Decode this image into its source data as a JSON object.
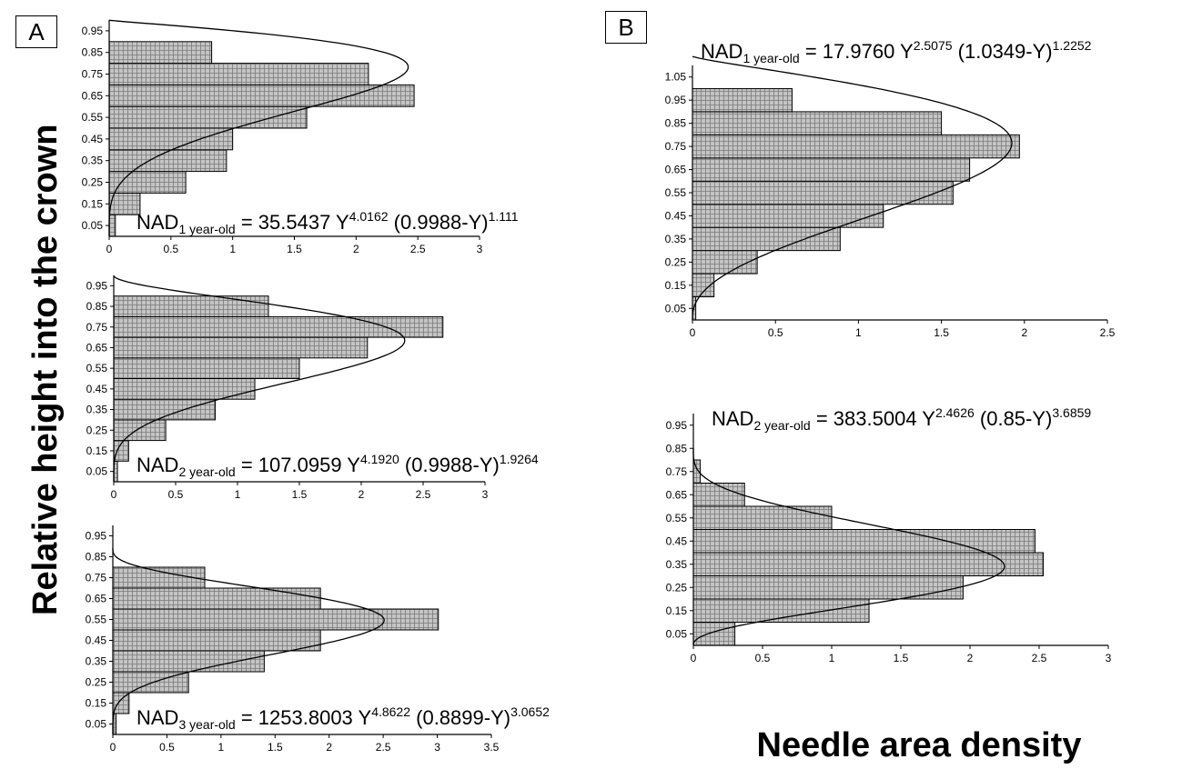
{
  "panels": [
    {
      "id": "A",
      "label": "A"
    },
    {
      "id": "B",
      "label": "B"
    }
  ],
  "axes": {
    "ylabel": "Relative height into the crown",
    "xlabel": "Needle area density"
  },
  "equations": {
    "a1": {
      "lhs": "NAD",
      "sub": "1 year-old",
      "coef": " = 35.5437 Y",
      "exp1": "4.0162",
      "mid": " (0.9988-Y)",
      "exp2": "1.111"
    },
    "a2": {
      "lhs": "NAD",
      "sub": "2 year-old",
      "coef": " = 107.0959 Y",
      "exp1": "4.1920",
      "mid": " (0.9988-Y)",
      "exp2": "1.9264"
    },
    "a3": {
      "lhs": "NAD",
      "sub": "3 year-old",
      "coef": " = 1253.8003 Y",
      "exp1": "4.8622",
      "mid": " (0.8899-Y)",
      "exp2": "3.0652"
    },
    "b1": {
      "lhs": "NAD",
      "sub": "1 year-old",
      "coef": " = 17.9760 Y",
      "exp1": "2.5075",
      "mid": " (1.0349-Y)",
      "exp2": "1.2252"
    },
    "b2": {
      "lhs": "NAD",
      "sub": "2 year-old",
      "coef": " = 383.5004 Y",
      "exp1": "2.4626",
      "mid": " (0.85-Y)",
      "exp2": "3.6859"
    }
  },
  "chart_data": [
    {
      "id": "a1",
      "type": "bar",
      "categories": [
        "0.05",
        "0.15",
        "0.25",
        "0.35",
        "0.45",
        "0.55",
        "0.65",
        "0.75",
        "0.85",
        "0.95"
      ],
      "values": [
        0.05,
        0.25,
        0.62,
        0.95,
        1.0,
        1.6,
        2.47,
        2.1,
        0.83,
        0
      ],
      "xticks": [
        "0",
        "0.5",
        "1",
        "1.5",
        "2",
        "2.5",
        "3"
      ],
      "xlim": [
        0,
        3
      ],
      "curve": {
        "a": 35.5437,
        "b": 4.0162,
        "c": 0.9988,
        "d": 1.111,
        "ymin": 0.0,
        "ymax": 0.9988
      }
    },
    {
      "id": "a2",
      "type": "bar",
      "categories": [
        "0.05",
        "0.15",
        "0.25",
        "0.35",
        "0.45",
        "0.55",
        "0.65",
        "0.75",
        "0.85",
        "0.95"
      ],
      "values": [
        0.03,
        0.12,
        0.42,
        0.82,
        1.14,
        1.5,
        2.05,
        2.66,
        1.25,
        0
      ],
      "xticks": [
        "0",
        "0.5",
        "1",
        "1.5",
        "2",
        "2.5",
        "3"
      ],
      "xlim": [
        0,
        3
      ],
      "curve": {
        "a": 107.0959,
        "b": 4.192,
        "c": 0.9988,
        "d": 1.9264,
        "ymin": 0.0,
        "ymax": 0.9988
      }
    },
    {
      "id": "a3",
      "type": "bar",
      "categories": [
        "0.05",
        "0.15",
        "0.25",
        "0.35",
        "0.45",
        "0.55",
        "0.65",
        "0.75",
        "0.85",
        "0.95"
      ],
      "values": [
        0.03,
        0.15,
        0.7,
        1.4,
        1.92,
        3.01,
        1.92,
        0.85,
        0,
        0
      ],
      "xticks": [
        "0",
        "0.5",
        "1",
        "1.5",
        "2",
        "2.5",
        "3",
        "3.5"
      ],
      "xlim": [
        0,
        3.5
      ],
      "curve": {
        "a": 1253.8003,
        "b": 4.8622,
        "c": 0.8899,
        "d": 3.0652,
        "ymin": 0.0,
        "ymax": 0.8899
      }
    },
    {
      "id": "b1",
      "type": "bar",
      "categories": [
        "0.05",
        "0.15",
        "0.25",
        "0.35",
        "0.45",
        "0.55",
        "0.65",
        "0.75",
        "0.85",
        "0.95",
        "1.05"
      ],
      "values": [
        0.02,
        0.13,
        0.39,
        0.89,
        1.15,
        1.57,
        1.67,
        1.97,
        1.5,
        0.6,
        0
      ],
      "xticks": [
        "0",
        "0.5",
        "1",
        "1.5",
        "2",
        "2.5"
      ],
      "xlim": [
        0,
        2.5
      ],
      "curve": {
        "a": 17.976,
        "b": 2.5075,
        "c": 1.0349,
        "d": 1.2252,
        "ymin": 0.0,
        "ymax": 1.0349
      }
    },
    {
      "id": "b2",
      "type": "bar",
      "categories": [
        "0.05",
        "0.15",
        "0.25",
        "0.35",
        "0.45",
        "0.55",
        "0.65",
        "0.75",
        "0.85",
        "0.95"
      ],
      "values": [
        0.3,
        1.27,
        1.95,
        2.53,
        2.47,
        1.0,
        0.37,
        0.05,
        0,
        0
      ],
      "xticks": [
        "0",
        "0.5",
        "1",
        "1.5",
        "2",
        "2.5",
        "3"
      ],
      "xlim": [
        0,
        3
      ],
      "curve": {
        "a": 383.5004,
        "b": 2.4626,
        "c": 0.85,
        "d": 3.6859,
        "ymin": 0.0,
        "ymax": 0.85
      }
    }
  ]
}
